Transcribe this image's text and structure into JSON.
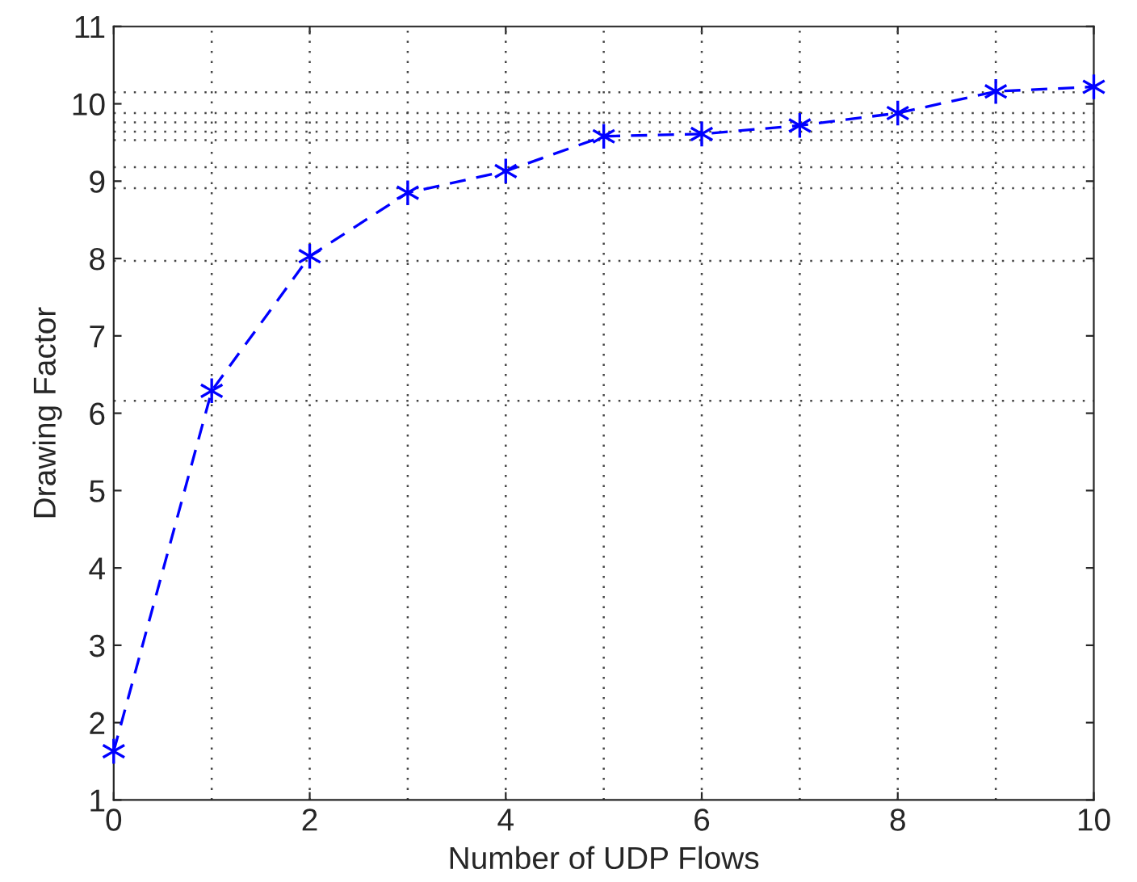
{
  "chart_data": {
    "type": "line",
    "xlabel": "Number of UDP Flows",
    "ylabel": "Drawing Factor",
    "x": [
      0,
      1,
      2,
      3,
      4,
      5,
      6,
      7,
      8,
      9,
      10
    ],
    "series": [
      {
        "color": "#0000ff",
        "values": [
          1.63,
          6.29,
          8.03,
          8.85,
          9.13,
          9.58,
          9.61,
          9.72,
          9.88,
          10.16,
          10.22
        ]
      }
    ],
    "marker": "cross",
    "line_style": "dashed",
    "grid": false,
    "legend": false,
    "xlim": [
      0,
      10
    ],
    "xticks": [
      0,
      2,
      4,
      6,
      8,
      10
    ],
    "ylim": [
      1,
      11
    ],
    "yticks": [
      1,
      2,
      3,
      4,
      5,
      6,
      7,
      8,
      9,
      10,
      11
    ],
    "ref_lines": [
      {
        "axis": "y",
        "value": 6.16,
        "line_style": "dotted",
        "color": "#444444"
      },
      {
        "axis": "y",
        "value": 7.97,
        "line_style": "dotted",
        "color": "#444444"
      },
      {
        "axis": "y",
        "value": 8.91,
        "line_style": "dotted",
        "color": "#444444"
      },
      {
        "axis": "y",
        "value": 9.18,
        "line_style": "dotted",
        "color": "#444444"
      },
      {
        "axis": "y",
        "value": 9.53,
        "line_style": "dotted",
        "color": "#444444"
      },
      {
        "axis": "y",
        "value": 9.64,
        "line_style": "dotted",
        "color": "#444444"
      },
      {
        "axis": "y",
        "value": 9.76,
        "line_style": "dotted",
        "color": "#444444"
      },
      {
        "axis": "y",
        "value": 9.88,
        "line_style": "dotted",
        "color": "#444444"
      },
      {
        "axis": "y",
        "value": 10.15,
        "line_style": "dotted",
        "color": "#444444"
      },
      {
        "axis": "x",
        "value": 1,
        "line_style": "dotted",
        "color": "#444444"
      },
      {
        "axis": "x",
        "value": 2,
        "line_style": "dotted",
        "color": "#444444"
      },
      {
        "axis": "x",
        "value": 3,
        "line_style": "dotted",
        "color": "#444444"
      },
      {
        "axis": "x",
        "value": 4,
        "line_style": "dotted",
        "color": "#444444"
      },
      {
        "axis": "x",
        "value": 5,
        "line_style": "dotted",
        "color": "#444444"
      },
      {
        "axis": "x",
        "value": 6,
        "line_style": "dotted",
        "color": "#444444"
      },
      {
        "axis": "x",
        "value": 7,
        "line_style": "dotted",
        "color": "#444444"
      },
      {
        "axis": "x",
        "value": 8,
        "line_style": "dotted",
        "color": "#444444"
      },
      {
        "axis": "x",
        "value": 9,
        "line_style": "dotted",
        "color": "#444444"
      }
    ]
  }
}
